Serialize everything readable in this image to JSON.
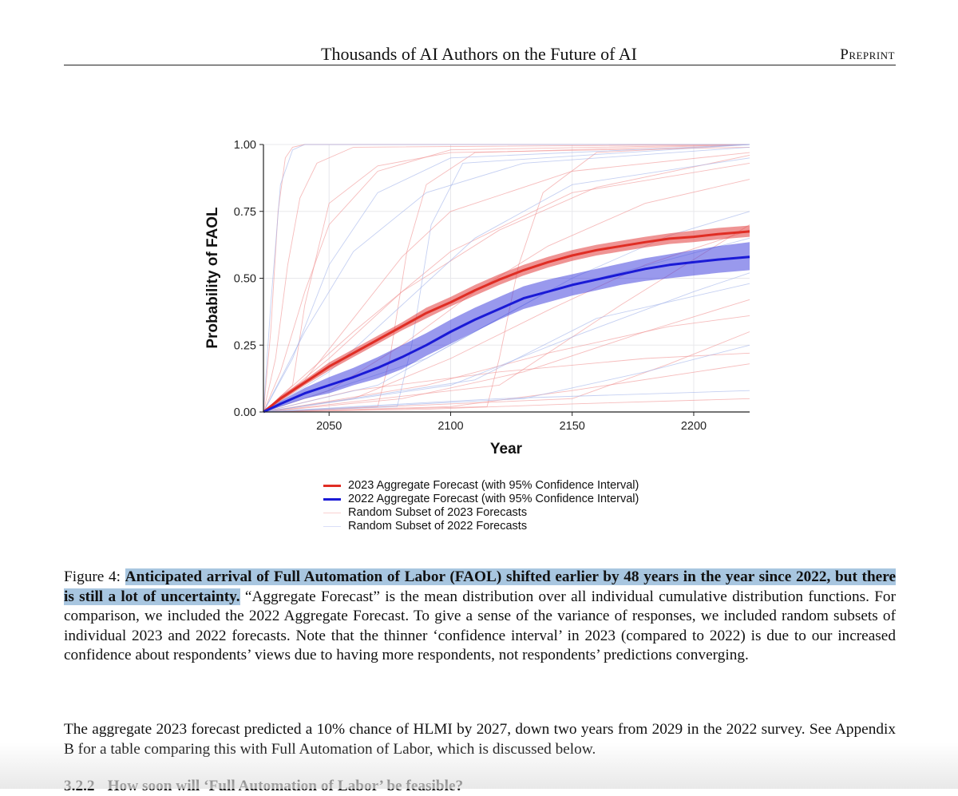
{
  "header": {
    "title": "Thousands of AI Authors on the Future of AI",
    "tag": "Preprint"
  },
  "legend": [
    {
      "label": "2023 Aggregate Forecast (with 95% Confidence Interval)",
      "color": "#e02d24",
      "style": "thick"
    },
    {
      "label": "2022 Aggregate Forecast (with 95% Confidence Interval)",
      "color": "#1a1ad6",
      "style": "thick"
    },
    {
      "label": "Random Subset of 2023 Forecasts",
      "color": "#f08f8f",
      "style": "thin"
    },
    {
      "label": "Random Subset of 2022 Forecasts",
      "color": "#9fb0ea",
      "style": "thin"
    }
  ],
  "chart_data": {
    "type": "line",
    "title": "",
    "xlabel": "Year",
    "ylabel": "Probability of FAOL",
    "xlim": [
      2023,
      2223
    ],
    "ylim": [
      0,
      1
    ],
    "x_ticks": [
      2050,
      2100,
      2150,
      2200
    ],
    "y_ticks": [
      "0.00",
      "0.25",
      "0.50",
      "0.75",
      "1.00"
    ],
    "grid": true,
    "legend_position": "bottom",
    "series": [
      {
        "name": "2023 Aggregate Forecast (with 95% Confidence Interval)",
        "color": "#e02d24",
        "x": [
          2023,
          2030,
          2040,
          2050,
          2060,
          2070,
          2080,
          2090,
          2100,
          2110,
          2120,
          2130,
          2140,
          2150,
          2160,
          2170,
          2180,
          2190,
          2200,
          2210,
          2223
        ],
        "y": [
          0.0,
          0.05,
          0.11,
          0.17,
          0.22,
          0.27,
          0.32,
          0.37,
          0.41,
          0.455,
          0.495,
          0.53,
          0.56,
          0.585,
          0.605,
          0.62,
          0.635,
          0.648,
          0.655,
          0.665,
          0.675
        ],
        "ci_low": [
          0.0,
          0.04,
          0.1,
          0.155,
          0.205,
          0.255,
          0.305,
          0.35,
          0.395,
          0.435,
          0.475,
          0.51,
          0.54,
          0.565,
          0.585,
          0.6,
          0.615,
          0.628,
          0.635,
          0.645,
          0.655
        ],
        "ci_high": [
          0.0,
          0.06,
          0.12,
          0.185,
          0.235,
          0.285,
          0.335,
          0.39,
          0.43,
          0.475,
          0.515,
          0.55,
          0.58,
          0.605,
          0.625,
          0.64,
          0.655,
          0.668,
          0.678,
          0.688,
          0.697
        ]
      },
      {
        "name": "2022 Aggregate Forecast (with 95% Confidence Interval)",
        "color": "#1a1ad6",
        "x": [
          2023,
          2030,
          2040,
          2050,
          2060,
          2070,
          2080,
          2090,
          2100,
          2110,
          2120,
          2130,
          2140,
          2150,
          2160,
          2170,
          2180,
          2190,
          2200,
          2210,
          2223
        ],
        "y": [
          0.0,
          0.03,
          0.07,
          0.1,
          0.13,
          0.165,
          0.205,
          0.25,
          0.3,
          0.345,
          0.385,
          0.425,
          0.45,
          0.475,
          0.495,
          0.515,
          0.535,
          0.55,
          0.56,
          0.57,
          0.58
        ],
        "ci_low": [
          0.0,
          0.02,
          0.05,
          0.07,
          0.1,
          0.125,
          0.16,
          0.21,
          0.255,
          0.3,
          0.345,
          0.385,
          0.41,
          0.435,
          0.455,
          0.475,
          0.49,
          0.5,
          0.51,
          0.52,
          0.53
        ],
        "ci_high": [
          0.0,
          0.04,
          0.09,
          0.13,
          0.165,
          0.205,
          0.25,
          0.295,
          0.345,
          0.39,
          0.43,
          0.47,
          0.495,
          0.515,
          0.535,
          0.555,
          0.575,
          0.59,
          0.605,
          0.62,
          0.635
        ]
      }
    ],
    "random_subsets": [
      {
        "name": "Random Subset of 2023 Forecasts",
        "color": "#f08f8f",
        "curves": [
          {
            "x": [
              2023,
              2026,
              2029,
              2032,
              2035,
              2040,
              2223
            ],
            "y": [
              0.0,
              0.3,
              0.75,
              0.95,
              0.99,
              1.0,
              1.0
            ]
          },
          {
            "x": [
              2023,
              2028,
              2033,
              2038,
              2045,
              2060,
              2223
            ],
            "y": [
              0.0,
              0.2,
              0.55,
              0.8,
              0.93,
              0.99,
              1.0
            ]
          },
          {
            "x": [
              2023,
              2030,
              2040,
              2050,
              2070,
              2100,
              2223
            ],
            "y": [
              0.0,
              0.15,
              0.45,
              0.7,
              0.9,
              0.98,
              1.0
            ]
          },
          {
            "x": [
              2023,
              2040,
              2060,
              2080,
              2100,
              2150,
              2223
            ],
            "y": [
              0.0,
              0.12,
              0.35,
              0.58,
              0.75,
              0.9,
              0.97
            ]
          },
          {
            "x": [
              2023,
              2050,
              2080,
              2110,
              2140,
              2180,
              2223
            ],
            "y": [
              0.0,
              0.08,
              0.25,
              0.45,
              0.62,
              0.78,
              0.87
            ]
          },
          {
            "x": [
              2023,
              2060,
              2100,
              2140,
              2180,
              2223
            ],
            "y": [
              0.0,
              0.05,
              0.2,
              0.38,
              0.55,
              0.68
            ]
          },
          {
            "x": [
              2023,
              2080,
              2130,
              2180,
              2223
            ],
            "y": [
              0.0,
              0.05,
              0.15,
              0.3,
              0.42
            ]
          },
          {
            "x": [
              2023,
              2100,
              2150,
              2223
            ],
            "y": [
              0.0,
              0.02,
              0.08,
              0.18
            ]
          },
          {
            "x": [
              2023,
              2090,
              2150,
              2223
            ],
            "y": [
              0.0,
              0.01,
              0.03,
              0.05
            ]
          },
          {
            "x": [
              2023,
              2050,
              2080,
              2120,
              2160,
              2223
            ],
            "y": [
              0.0,
              0.2,
              0.45,
              0.68,
              0.84,
              0.96
            ]
          },
          {
            "x": [
              2023,
              2070,
              2075,
              2082,
              2090,
              2110,
              2223
            ],
            "y": [
              0.0,
              0.02,
              0.2,
              0.6,
              0.85,
              0.97,
              1.0
            ]
          },
          {
            "x": [
              2023,
              2115,
              2120,
              2128,
              2138,
              2160,
              2223
            ],
            "y": [
              0.0,
              0.02,
              0.2,
              0.55,
              0.82,
              0.97,
              1.0
            ]
          },
          {
            "x": [
              2023,
              2035,
              2040,
              2050,
              2070,
              2100,
              2223
            ],
            "y": [
              0.0,
              0.1,
              0.4,
              0.78,
              0.92,
              0.97,
              0.99
            ]
          },
          {
            "x": [
              2023,
              2090,
              2140,
              2190,
              2223
            ],
            "y": [
              0.0,
              0.1,
              0.22,
              0.32,
              0.36
            ]
          },
          {
            "x": [
              2023,
              2120,
              2170,
              2223
            ],
            "y": [
              0.0,
              0.1,
              0.4,
              0.7
            ]
          },
          {
            "x": [
              2023,
              2060,
              2100,
              2150,
              2223
            ],
            "y": [
              0.0,
              0.3,
              0.6,
              0.82,
              0.93
            ]
          },
          {
            "x": [
              2023,
              2150,
              2190,
              2223
            ],
            "y": [
              0.0,
              0.05,
              0.18,
              0.3
            ]
          },
          {
            "x": [
              2023,
              2060,
              2120,
              2180,
              2223
            ],
            "y": [
              0.0,
              0.08,
              0.15,
              0.2,
              0.22
            ]
          }
        ]
      },
      {
        "name": "Random Subset of 2022 Forecasts",
        "color": "#9fb0ea",
        "curves": [
          {
            "x": [
              2023,
              2026,
              2030,
              2035,
              2040,
              2223
            ],
            "y": [
              0.0,
              0.4,
              0.85,
              0.98,
              1.0,
              1.0
            ]
          },
          {
            "x": [
              2023,
              2035,
              2050,
              2070,
              2100,
              2223
            ],
            "y": [
              0.0,
              0.2,
              0.55,
              0.82,
              0.95,
              1.0
            ]
          },
          {
            "x": [
              2023,
              2050,
              2080,
              2110,
              2150,
              2223
            ],
            "y": [
              0.0,
              0.15,
              0.4,
              0.65,
              0.85,
              0.95
            ]
          },
          {
            "x": [
              2023,
              2070,
              2110,
              2150,
              2190,
              2223
            ],
            "y": [
              0.0,
              0.1,
              0.3,
              0.5,
              0.66,
              0.75
            ]
          },
          {
            "x": [
              2023,
              2100,
              2150,
              2200,
              2223
            ],
            "y": [
              0.0,
              0.1,
              0.28,
              0.45,
              0.52
            ]
          },
          {
            "x": [
              2023,
              2130,
              2180,
              2223
            ],
            "y": [
              0.0,
              0.05,
              0.15,
              0.25
            ]
          },
          {
            "x": [
              2023,
              2060,
              2120,
              2223
            ],
            "y": [
              0.0,
              0.02,
              0.05,
              0.08
            ]
          },
          {
            "x": [
              2023,
              2040,
              2060,
              2090,
              2130,
              2223
            ],
            "y": [
              0.0,
              0.3,
              0.6,
              0.82,
              0.93,
              0.99
            ]
          },
          {
            "x": [
              2023,
              2078,
              2084,
              2092,
              2105,
              2223
            ],
            "y": [
              0.0,
              0.02,
              0.25,
              0.7,
              0.93,
              1.0
            ]
          },
          {
            "x": [
              2023,
              2090,
              2140,
              2223
            ],
            "y": [
              0.0,
              0.2,
              0.45,
              0.65
            ]
          },
          {
            "x": [
              2023,
              2110,
              2160,
              2223
            ],
            "y": [
              0.0,
              0.12,
              0.35,
              0.48
            ]
          }
        ]
      }
    ]
  },
  "caption": {
    "prefix": "Figure 4: ",
    "highlight": "Anticipated arrival of Full Automation of Labor (FAOL) shifted earlier by 48 years in the year since 2022, but there is still a lot of uncertainty.",
    "body": " “Aggregate Forecast” is the mean distribution over all individual cumulative distribution functions. For comparison, we included the 2022 Aggregate Forecast. To give a sense of the variance of responses, we included random subsets of individual 2023 and 2022 forecasts. Note that the thinner ‘confidence interval’ in 2023 (compared to 2022) is due to our increased confidence about respondents’ views due to having more respondents, not respondents’ predictions converging."
  },
  "body_paragraph": "The aggregate 2023 forecast predicted a 10% chance of HLMI by 2027, down two years from 2029 in the 2022 survey. See Appendix B for a table comparing this with Full Automation of Labor, which is discussed below.",
  "next_section": {
    "number": "3.2.2",
    "title": "How soon will ‘Full Automation of Labor’ be feasible?"
  }
}
